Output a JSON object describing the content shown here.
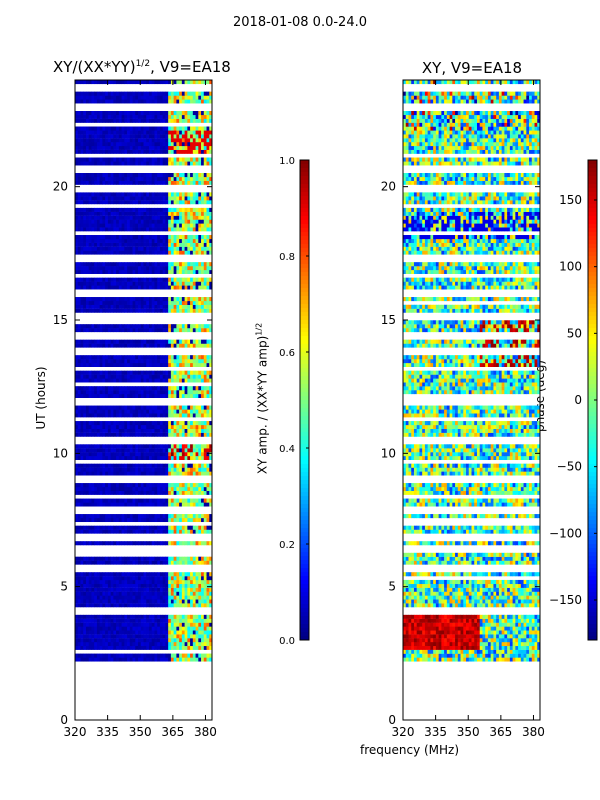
{
  "figure_title": "2018-01-08 0.0-24.0",
  "chart_data": [
    {
      "type": "heatmap",
      "title": "XY/(XX*YY)^1/2, V9=EA18",
      "title_main": "XY/(XX*YY)",
      "title_exp": "1/2",
      "title_tail": ", V9=EA18",
      "xlabel": "frequency (MHz)",
      "ylabel": "UT (hours)",
      "xlim": [
        320,
        383
      ],
      "ylim": [
        0,
        24
      ],
      "xticks": [
        "320",
        "335",
        "350",
        "365",
        "380"
      ],
      "yticks": [
        "0",
        "5",
        "10",
        "15",
        "20"
      ],
      "data_start_ut": 2.2,
      "data_end_ut": 24.0,
      "band_edge_mhz": 362,
      "colormap": "jet",
      "colorbar": {
        "label": "XY amp. / (XX*YY amp)^1/2",
        "label_main": "XY amp. / (XX*YY amp)",
        "label_exp": "1/2",
        "range": [
          0.0,
          1.0
        ],
        "ticks": [
          "0.0",
          "0.2",
          "0.4",
          "0.6",
          "0.8",
          "1.0"
        ]
      }
    },
    {
      "type": "heatmap",
      "title": "XY, V9=EA18",
      "xlabel": "frequency (MHz)",
      "ylabel": "",
      "xlim": [
        320,
        383
      ],
      "ylim": [
        0,
        24
      ],
      "xticks": [
        "320",
        "335",
        "350",
        "365",
        "380"
      ],
      "yticks": [
        "0",
        "5",
        "10",
        "15",
        "20"
      ],
      "data_start_ut": 2.2,
      "data_end_ut": 24.0,
      "colormap": "jet",
      "colorbar": {
        "label": "phase (deg)",
        "range": [
          -180,
          180
        ],
        "ticks": [
          "−150",
          "−100",
          "−50",
          "0",
          "50",
          "100",
          "150"
        ]
      }
    }
  ],
  "gap_rows_ut": [
    4.0,
    5.6,
    6.3,
    6.8,
    7.3,
    7.8,
    8.3,
    9.0,
    9.6,
    10.4,
    11.2,
    11.9,
    13.1,
    13.7,
    14.3,
    15.1,
    15.9,
    16.6,
    17.3,
    18.2,
    19.2,
    19.8,
    20.6,
    21.1,
    22.9,
    23.6
  ]
}
